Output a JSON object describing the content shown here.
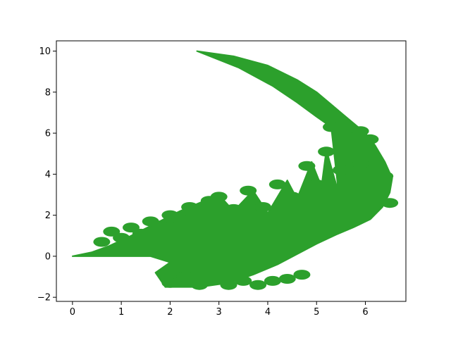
{
  "chart_data": {
    "type": "scatter",
    "title": "",
    "xlabel": "",
    "ylabel": "",
    "xlim": [
      -0.33,
      6.83
    ],
    "ylim": [
      -2.2,
      10.5
    ],
    "xticks": [
      0,
      1,
      2,
      3,
      4,
      5,
      6
    ],
    "xtick_labels": [
      "0",
      "1",
      "2",
      "3",
      "4",
      "5",
      "6"
    ],
    "yticks": [
      -2,
      0,
      2,
      4,
      6,
      8,
      10
    ],
    "ytick_labels": [
      "−2",
      "0",
      "2",
      "4",
      "6",
      "8",
      "10"
    ],
    "grid": false,
    "legend": "none",
    "series": [
      {
        "color": "#2ca02c",
        "marker": "dot",
        "description_shape": "curved fern leaf (IFS fractal)",
        "outline": [
          [
            2.55,
            10.0
          ],
          [
            3.3,
            9.75
          ],
          [
            4.0,
            9.3
          ],
          [
            4.6,
            8.6
          ],
          [
            5.0,
            8.0
          ],
          [
            5.3,
            7.4
          ],
          [
            5.55,
            6.9
          ],
          [
            5.75,
            6.5
          ],
          [
            6.0,
            6.0
          ],
          [
            6.2,
            5.4
          ],
          [
            6.4,
            4.6
          ],
          [
            6.55,
            3.8
          ],
          [
            6.5,
            3.1
          ],
          [
            6.35,
            2.4
          ],
          [
            6.1,
            1.8
          ],
          [
            5.75,
            1.4
          ],
          [
            5.4,
            1.05
          ],
          [
            5.0,
            0.6
          ],
          [
            4.6,
            0.1
          ],
          [
            4.2,
            -0.4
          ],
          [
            3.7,
            -0.9
          ],
          [
            3.2,
            -1.3
          ],
          [
            2.6,
            -1.5
          ],
          [
            1.9,
            -1.5
          ],
          [
            1.7,
            -0.8
          ],
          [
            2.0,
            -0.3
          ],
          [
            1.6,
            0.0
          ],
          [
            0.0,
            0.0
          ],
          [
            0.4,
            0.2
          ],
          [
            0.75,
            0.5
          ],
          [
            1.2,
            1.0
          ],
          [
            1.7,
            1.6
          ],
          [
            2.2,
            2.2
          ],
          [
            2.8,
            2.8
          ],
          [
            3.0,
            3.0
          ],
          [
            3.3,
            2.2
          ],
          [
            3.7,
            3.2
          ],
          [
            4.0,
            2.1
          ],
          [
            4.4,
            3.7
          ],
          [
            4.6,
            2.8
          ],
          [
            4.9,
            4.6
          ],
          [
            5.1,
            3.4
          ],
          [
            5.2,
            5.2
          ],
          [
            5.45,
            3.1
          ],
          [
            5.3,
            6.3
          ],
          [
            5.0,
            6.8
          ],
          [
            4.6,
            7.5
          ],
          [
            4.1,
            8.3
          ],
          [
            3.4,
            9.2
          ],
          [
            2.55,
            10.0
          ]
        ],
        "leaflets": [
          [
            0.6,
            0.7
          ],
          [
            0.8,
            1.2
          ],
          [
            1.0,
            0.9
          ],
          [
            1.2,
            1.4
          ],
          [
            1.4,
            1.1
          ],
          [
            1.6,
            1.7
          ],
          [
            1.8,
            1.5
          ],
          [
            2.0,
            2.0
          ],
          [
            2.2,
            1.8
          ],
          [
            2.4,
            2.4
          ],
          [
            2.6,
            2.2
          ],
          [
            2.8,
            2.7
          ],
          [
            3.0,
            2.9
          ],
          [
            2.0,
            -1.3
          ],
          [
            2.3,
            -1.0
          ],
          [
            2.6,
            -1.4
          ],
          [
            2.9,
            -1.1
          ],
          [
            3.2,
            -1.4
          ],
          [
            3.5,
            -1.2
          ],
          [
            3.8,
            -1.4
          ],
          [
            4.1,
            -1.2
          ],
          [
            4.4,
            -1.1
          ],
          [
            4.7,
            -0.9
          ],
          [
            3.3,
            2.3
          ],
          [
            3.6,
            3.2
          ],
          [
            3.9,
            2.4
          ],
          [
            4.2,
            3.5
          ],
          [
            4.5,
            2.9
          ],
          [
            4.8,
            4.4
          ],
          [
            5.0,
            3.5
          ],
          [
            5.2,
            5.1
          ],
          [
            5.5,
            4.2
          ],
          [
            5.9,
            4.5
          ],
          [
            6.1,
            5.1
          ],
          [
            6.4,
            3.9
          ],
          [
            6.5,
            2.6
          ],
          [
            5.3,
            6.3
          ],
          [
            5.6,
            6.2
          ],
          [
            5.9,
            6.1
          ],
          [
            6.1,
            5.7
          ]
        ]
      }
    ]
  }
}
